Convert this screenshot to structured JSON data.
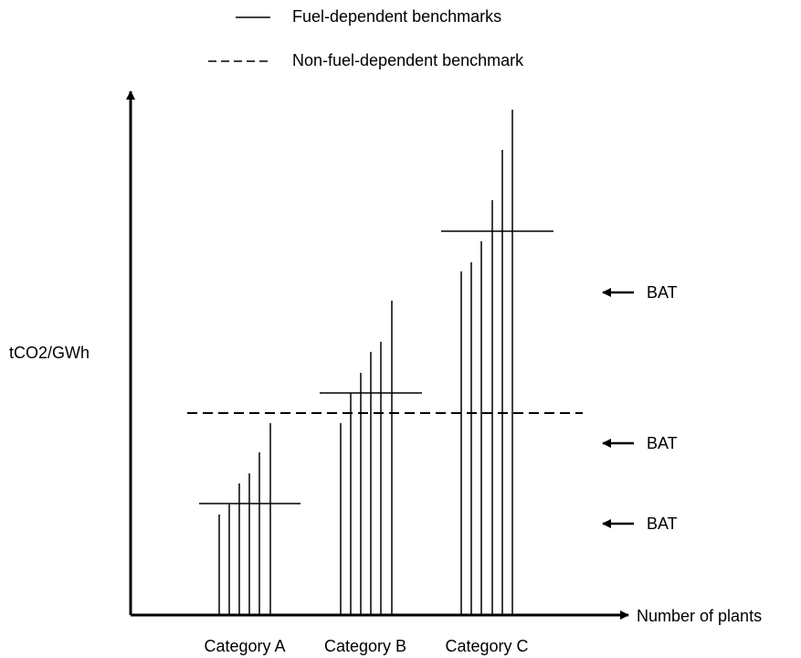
{
  "legend": {
    "solid": "Fuel-dependent benchmarks",
    "dashed": "Non-fuel-dependent benchmark"
  },
  "axes": {
    "y_label": "tCO2/GWh",
    "x_label": "Number of plants"
  },
  "categories": [
    "Category A",
    "Category B",
    "Category C"
  ],
  "annotations": [
    "BAT",
    "BAT",
    "BAT"
  ]
}
